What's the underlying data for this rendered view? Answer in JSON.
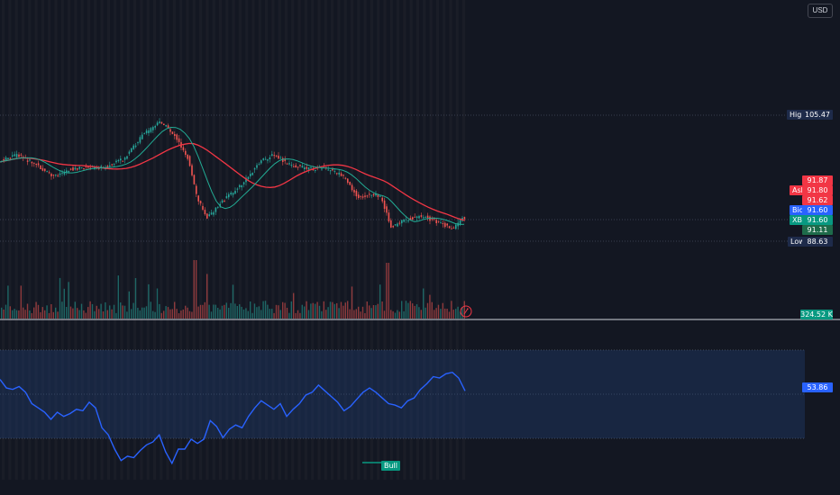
{
  "currency_button": "USD",
  "price_panel": {
    "high_label": "High",
    "high_value": "105.47",
    "low_label": "Low",
    "low_value": "88.63",
    "ask_label": "Ask",
    "ask_values": [
      "91.87",
      "91.80",
      "91.62"
    ],
    "bid_label": "Bid",
    "bid_value": "91.60",
    "xbi_label": "XBI",
    "xbi_value": "91.60",
    "last_below": "91.11",
    "volume_value": "324.52 K"
  },
  "oscillator": {
    "value": "53.86",
    "signal_label": "Bull"
  },
  "colors": {
    "background": "#131722",
    "up": "#26a69a",
    "down": "#ef5350",
    "ma_slow": "#f23645",
    "ma_fast": "#22ab94",
    "oscillator_line": "#2962ff",
    "label_navy": "#1e2b4a",
    "label_blue": "#2962ff",
    "label_green": "#089981"
  },
  "chart_data": {
    "type": "line",
    "series": [
      {
        "values": [
          61,
          55,
          54,
          56,
          52,
          44,
          41,
          38,
          33,
          38,
          35,
          37,
          40,
          39,
          45,
          41,
          27,
          22,
          12,
          4,
          7,
          6,
          11,
          15,
          17,
          22,
          10,
          2,
          12,
          12,
          19,
          16,
          19,
          32,
          28,
          20,
          26,
          29,
          27,
          35,
          41,
          46,
          43,
          40,
          44,
          35,
          40,
          44,
          50,
          52,
          57,
          53,
          49,
          45,
          39,
          42,
          47,
          52,
          55,
          52,
          48,
          44,
          43,
          41,
          46,
          48,
          54,
          58,
          63,
          62,
          65,
          66,
          62,
          53
        ]
      }
    ],
    "ylim": [
      0,
      100
    ],
    "bands": [
      30,
      50,
      70
    ]
  }
}
